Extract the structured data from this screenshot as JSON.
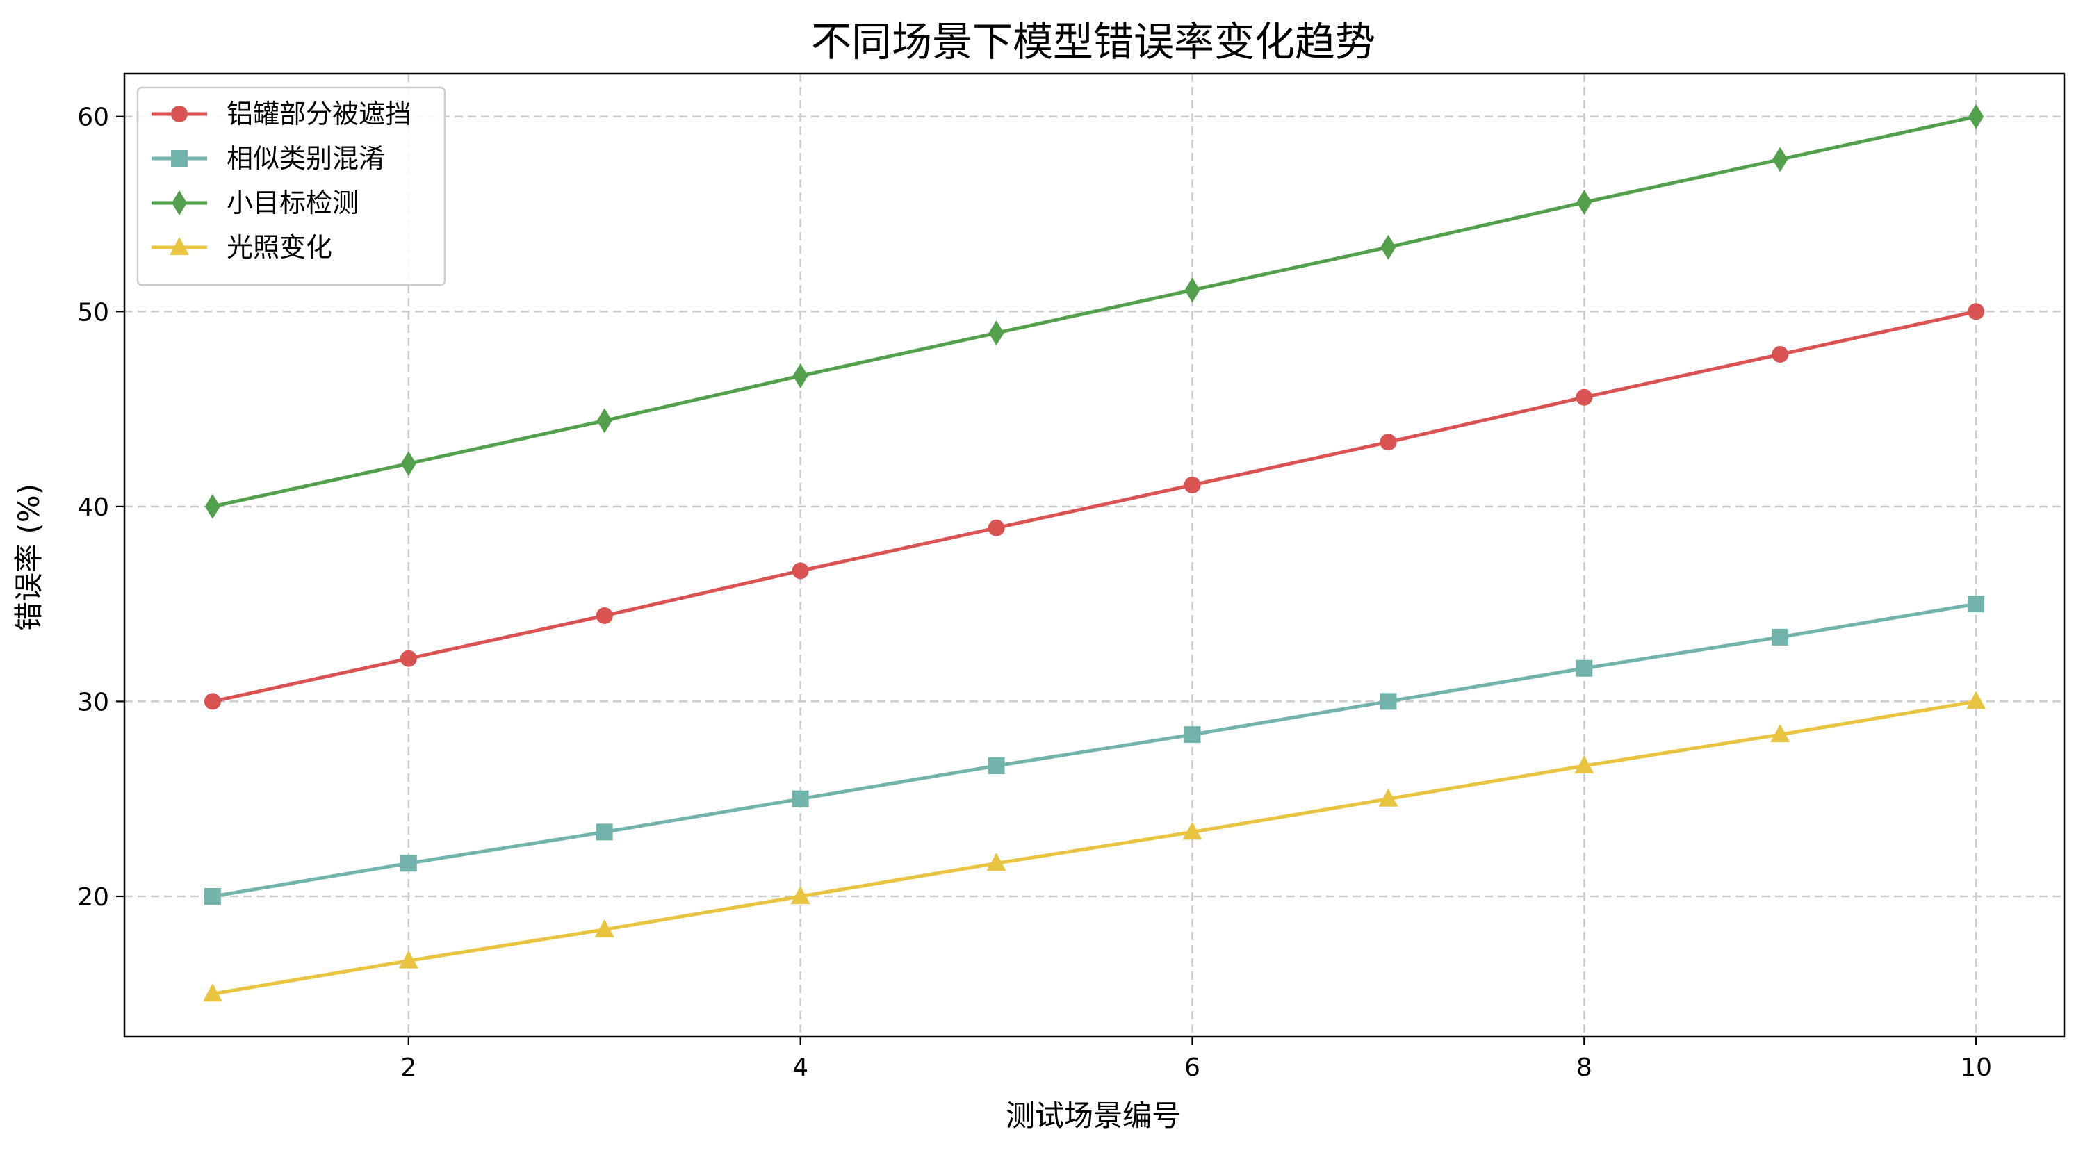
{
  "chart_data": {
    "type": "line",
    "title": "不同场景下模型错误率变化趋势",
    "xlabel": "测试场景编号",
    "ylabel": "错误率 (%)",
    "x": [
      1,
      2,
      3,
      4,
      5,
      6,
      7,
      8,
      9,
      10
    ],
    "xlim": [
      0.55,
      10.45
    ],
    "ylim": [
      12.8,
      62.2
    ],
    "x_ticks": [
      2,
      4,
      6,
      8,
      10
    ],
    "y_ticks": [
      20,
      30,
      40,
      50,
      60
    ],
    "grid": true,
    "legend_position": "top-left",
    "series": [
      {
        "name": "铝罐部分被遮挡",
        "color": "#d95353",
        "marker": "circle",
        "values": [
          30,
          32.2,
          34.4,
          36.7,
          38.9,
          41.1,
          43.3,
          45.6,
          47.8,
          50
        ]
      },
      {
        "name": "相似类别混淆",
        "color": "#72b3ac",
        "marker": "square",
        "values": [
          20,
          21.7,
          23.3,
          25,
          26.7,
          28.3,
          30,
          31.7,
          33.3,
          35
        ]
      },
      {
        "name": "小目标检测",
        "color": "#53a04c",
        "marker": "diamond",
        "values": [
          40,
          42.2,
          44.4,
          46.7,
          48.9,
          51.1,
          53.3,
          55.6,
          57.8,
          60
        ]
      },
      {
        "name": "光照变化",
        "color": "#e8c440",
        "marker": "triangle",
        "values": [
          15,
          16.7,
          18.3,
          20,
          21.7,
          23.3,
          25,
          26.7,
          28.3,
          30
        ]
      }
    ]
  }
}
